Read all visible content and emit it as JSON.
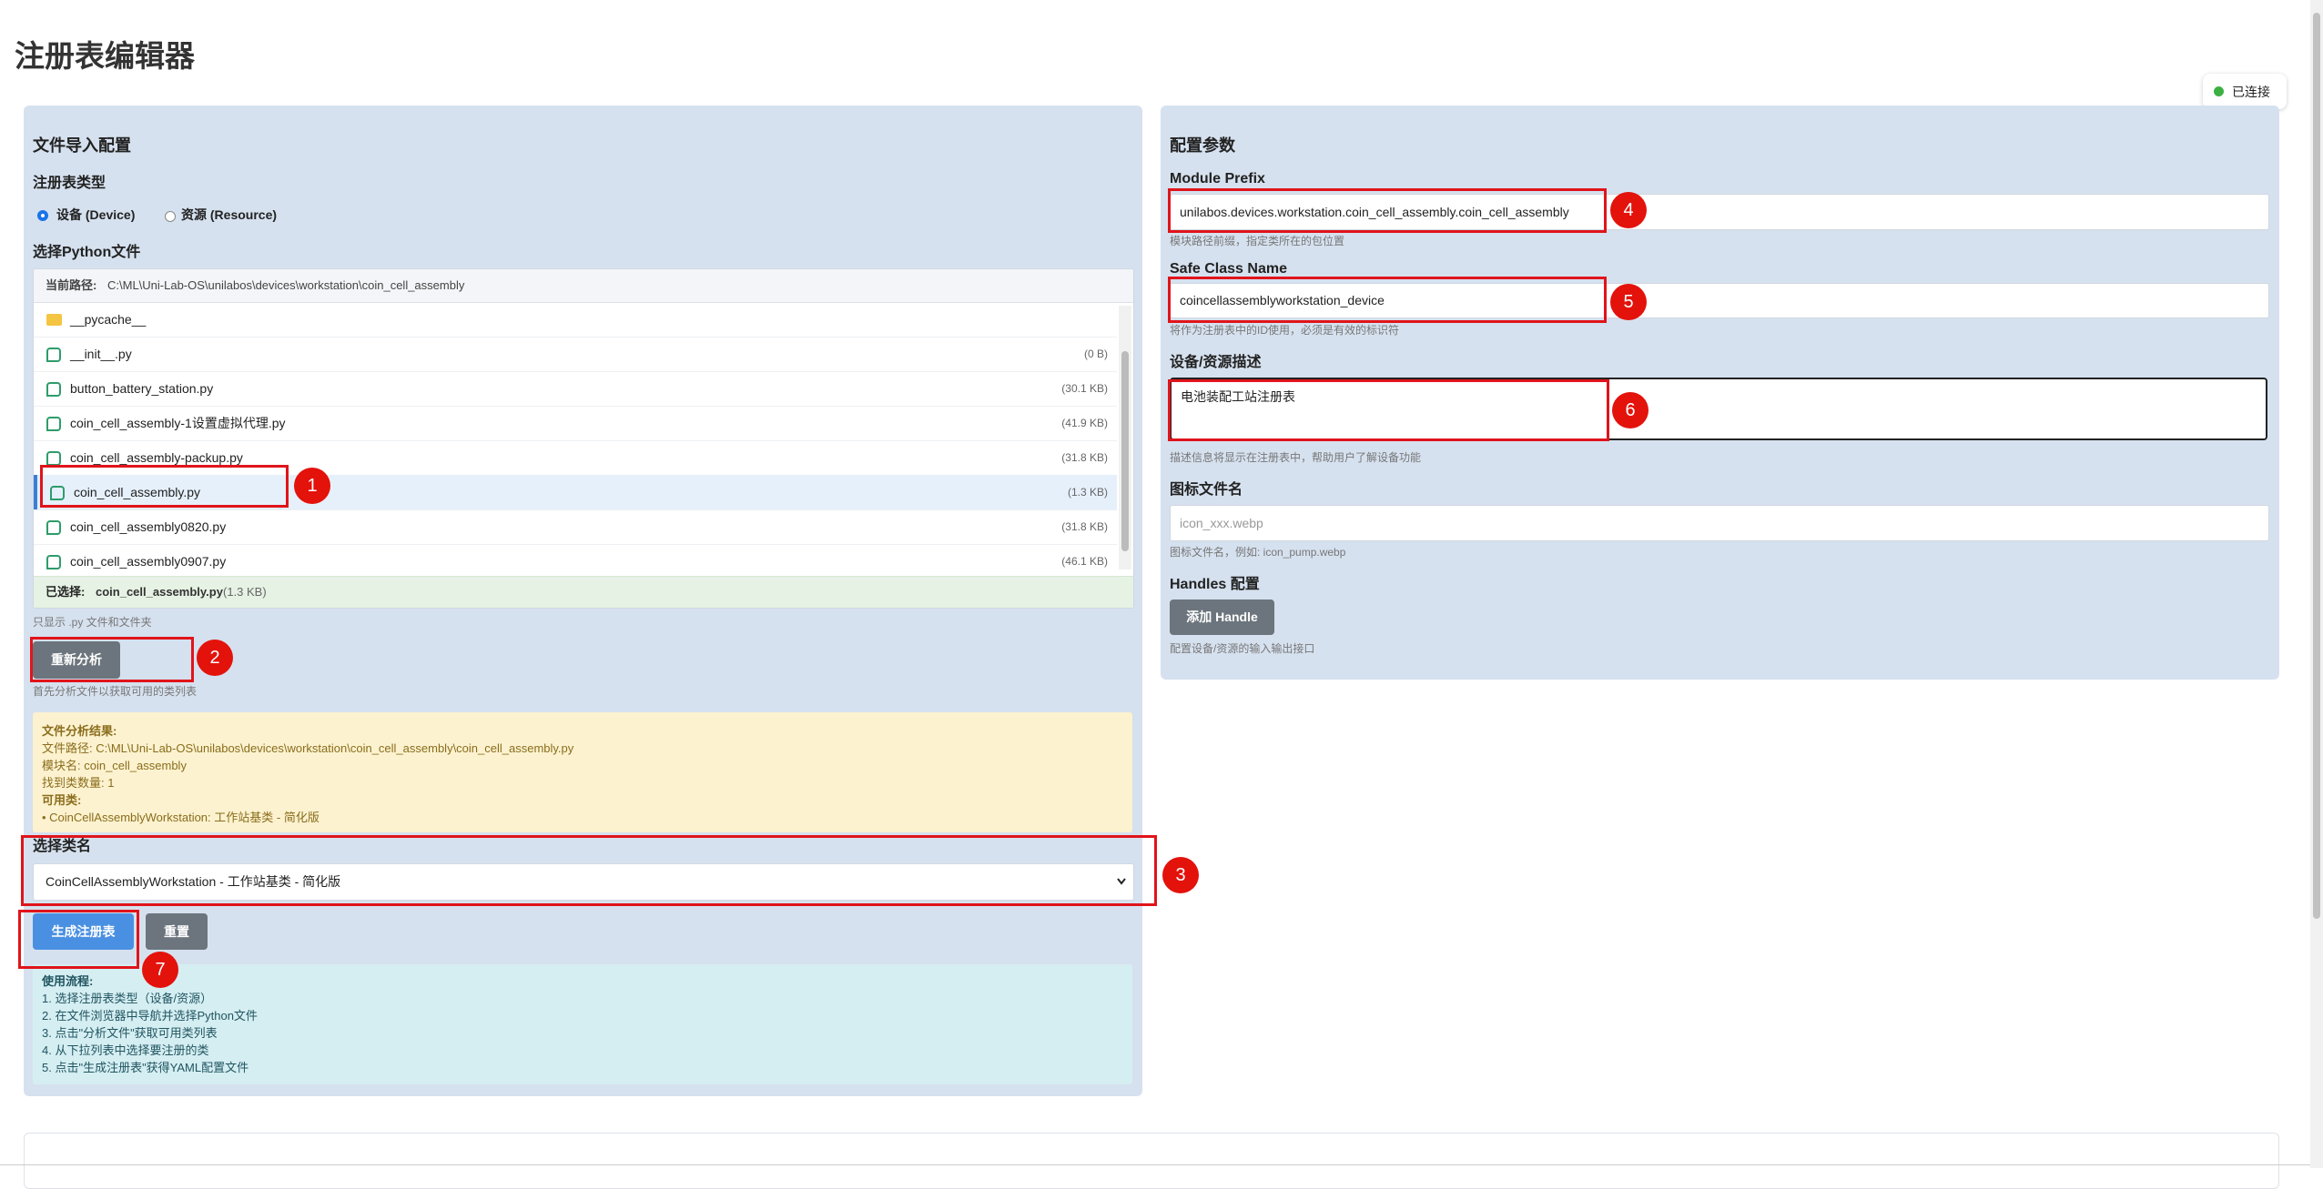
{
  "header": {
    "title": "注册表编辑器",
    "status": "已连接"
  },
  "file_import": {
    "heading": "文件导入配置",
    "registry_type_label": "注册表类型",
    "radio_options": [
      "设备 (Device)",
      "资源 (Resource)"
    ],
    "file_label": "选择Python文件",
    "current_path_label": "当前路径:",
    "current_path": "C:\\ML\\Uni-Lab-OS\\unilabos\\devices\\workstation\\coin_cell_assembly",
    "files": [
      {
        "name": "__pycache__"
      },
      {
        "name": "__init__.py",
        "size": "(0 B)"
      },
      {
        "name": "button_battery_station.py",
        "size": "(30.1 KB)"
      },
      {
        "name": "coin_cell_assembly-1设置虚拟代理.py",
        "size": "(41.9 KB)"
      },
      {
        "name": "coin_cell_assembly-packup.py",
        "size": "(31.8 KB)"
      },
      {
        "name": "coin_cell_assembly.py",
        "size": "(1.3 KB)"
      },
      {
        "name": "coin_cell_assembly0820.py",
        "size": "(31.8 KB)"
      },
      {
        "name": "coin_cell_assembly0907.py",
        "size": "(46.1 KB)"
      }
    ],
    "selected_label": "已选择:",
    "selected_name": "coin_cell_assembly.py",
    "selected_size": "(1.3 KB)",
    "filter_hint": "只显示 .py 文件和文件夹",
    "reanalyze_button": "重新分析",
    "analyze_hint": "首先分析文件以获取可用的类列表",
    "analysis": [
      "文件分析结果:",
      "文件路径: C:\\ML\\Uni-Lab-OS\\unilabos\\devices\\workstation\\coin_cell_assembly\\coin_cell_assembly.py",
      "模块名: coin_cell_assembly",
      "找到类数量: 1",
      "可用类:",
      "• CoinCellAssemblyWorkstation: 工作站基类 - 简化版"
    ],
    "class_label": "选择类名",
    "class_option": "CoinCellAssemblyWorkstation - 工作站基类 - 简化版",
    "generate_button": "生成注册表",
    "reset_button": "重置",
    "usage": [
      "使用流程:",
      "1. 选择注册表类型（设备/资源）",
      "2. 在文件浏览器中导航并选择Python文件",
      "3. 点击\"分析文件\"获取可用类列表",
      "4. 从下拉列表中选择要注册的类",
      "5. 点击\"生成注册表\"获得YAML配置文件"
    ]
  },
  "config": {
    "heading": "配置参数",
    "module_prefix_label": "Module Prefix",
    "module_prefix_value": "unilabos.devices.workstation.coin_cell_assembly.coin_cell_assembly",
    "module_prefix_hint": "模块路径前缀，指定类所在的包位置",
    "class_name_label": "Safe Class Name",
    "class_name_value": "coincellassemblyworkstation_device",
    "class_name_hint": "将作为注册表中的ID使用，必须是有效的标识符",
    "description_label": "设备/资源描述",
    "description_value": "电池装配工站注册表",
    "description_hint": "描述信息将显示在注册表中，帮助用户了解设备功能",
    "icon_label": "图标文件名",
    "icon_placeholder": "icon_xxx.webp",
    "icon_hint": "图标文件名，例如: icon_pump.webp",
    "handles_label": "Handles 配置",
    "add_handle_button": "添加 Handle",
    "handles_hint": "配置设备/资源的输入输出接口"
  },
  "annotations": [
    "1",
    "2",
    "3",
    "4",
    "5",
    "6",
    "7"
  ]
}
